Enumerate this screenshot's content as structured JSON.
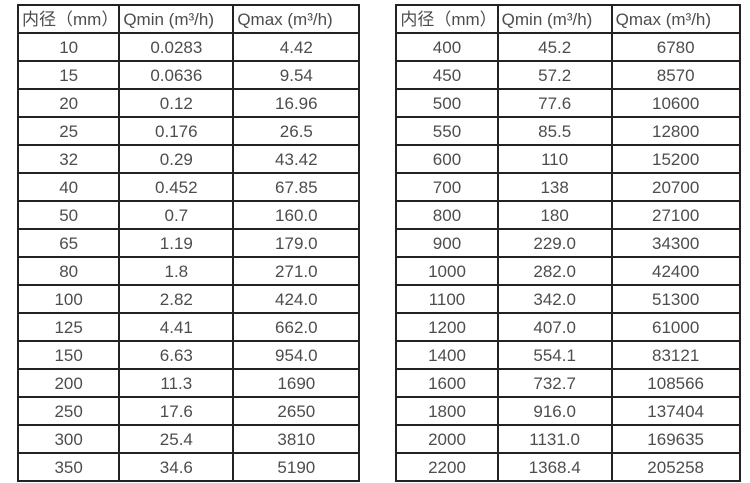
{
  "page": {
    "background": "#ffffff",
    "border_color": "#222222",
    "text_color": "#4d4d4d"
  },
  "tables": [
    {
      "id": "flow-range-table-small-diameters",
      "headers": [
        "内径（mm）",
        "Qmin (m³/h)",
        "Qmax (m³/h)"
      ],
      "rows": [
        [
          "10",
          "0.0283",
          "4.42"
        ],
        [
          "15",
          "0.0636",
          "9.54"
        ],
        [
          "20",
          "0.12",
          "16.96"
        ],
        [
          "25",
          "0.176",
          "26.5"
        ],
        [
          "32",
          "0.29",
          "43.42"
        ],
        [
          "40",
          "0.452",
          "67.85"
        ],
        [
          "50",
          "0.7",
          "160.0"
        ],
        [
          "65",
          "1.19",
          "179.0"
        ],
        [
          "80",
          "1.8",
          "271.0"
        ],
        [
          "100",
          "2.82",
          "424.0"
        ],
        [
          "125",
          "4.41",
          "662.0"
        ],
        [
          "150",
          "6.63",
          "954.0"
        ],
        [
          "200",
          "11.3",
          "1690"
        ],
        [
          "250",
          "17.6",
          "2650"
        ],
        [
          "300",
          "25.4",
          "3810"
        ],
        [
          "350",
          "34.6",
          "5190"
        ]
      ]
    },
    {
      "id": "flow-range-table-large-diameters",
      "headers": [
        "内径（mm）",
        "Qmin (m³/h)",
        "Qmax (m³/h)"
      ],
      "rows": [
        [
          "400",
          "45.2",
          "6780"
        ],
        [
          "450",
          "57.2",
          "8570"
        ],
        [
          "500",
          "77.6",
          "10600"
        ],
        [
          "550",
          "85.5",
          "12800"
        ],
        [
          "600",
          "110",
          "15200"
        ],
        [
          "700",
          "138",
          "20700"
        ],
        [
          "800",
          "180",
          "27100"
        ],
        [
          "900",
          "229.0",
          "34300"
        ],
        [
          "1000",
          "282.0",
          "42400"
        ],
        [
          "1100",
          "342.0",
          "51300"
        ],
        [
          "1200",
          "407.0",
          "61000"
        ],
        [
          "1400",
          "554.1",
          "83121"
        ],
        [
          "1600",
          "732.7",
          "108566"
        ],
        [
          "1800",
          "916.0",
          "137404"
        ],
        [
          "2000",
          "1131.0",
          "169635"
        ],
        [
          "2200",
          "1368.4",
          "205258"
        ]
      ]
    }
  ]
}
